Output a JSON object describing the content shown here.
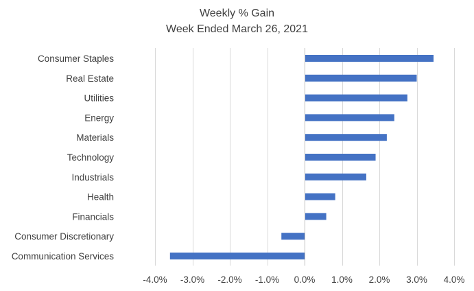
{
  "chart_data": {
    "type": "bar",
    "orientation": "horizontal",
    "title": "Weekly % Gain",
    "subtitle": "Week Ended March 26, 2021",
    "categories": [
      "Consumer Staples",
      "Real Estate",
      "Utilities",
      "Energy",
      "Materials",
      "Technology",
      "Industrials",
      "Health",
      "Financials",
      "Consumer Discretionary",
      "Communication Services"
    ],
    "values": [
      3.45,
      3.0,
      2.75,
      2.4,
      2.2,
      1.9,
      1.65,
      0.82,
      0.58,
      -0.62,
      -3.6
    ],
    "value_unit": "%",
    "xlim": [
      -4,
      4
    ],
    "xticks": [
      -4,
      -3,
      -2,
      -1,
      0,
      1,
      2,
      3,
      4
    ],
    "tick_labels": [
      "-4.0%",
      "-3.0%",
      "-2.0%",
      "-1.0%",
      "0.0%",
      "1.0%",
      "2.0%",
      "3.0%",
      "4.0%"
    ],
    "grid": "vertical",
    "legend": "none",
    "bar_color": "#4472C4",
    "grid_color": "#D9D9D9",
    "axis_color": "#BFBFBF"
  }
}
